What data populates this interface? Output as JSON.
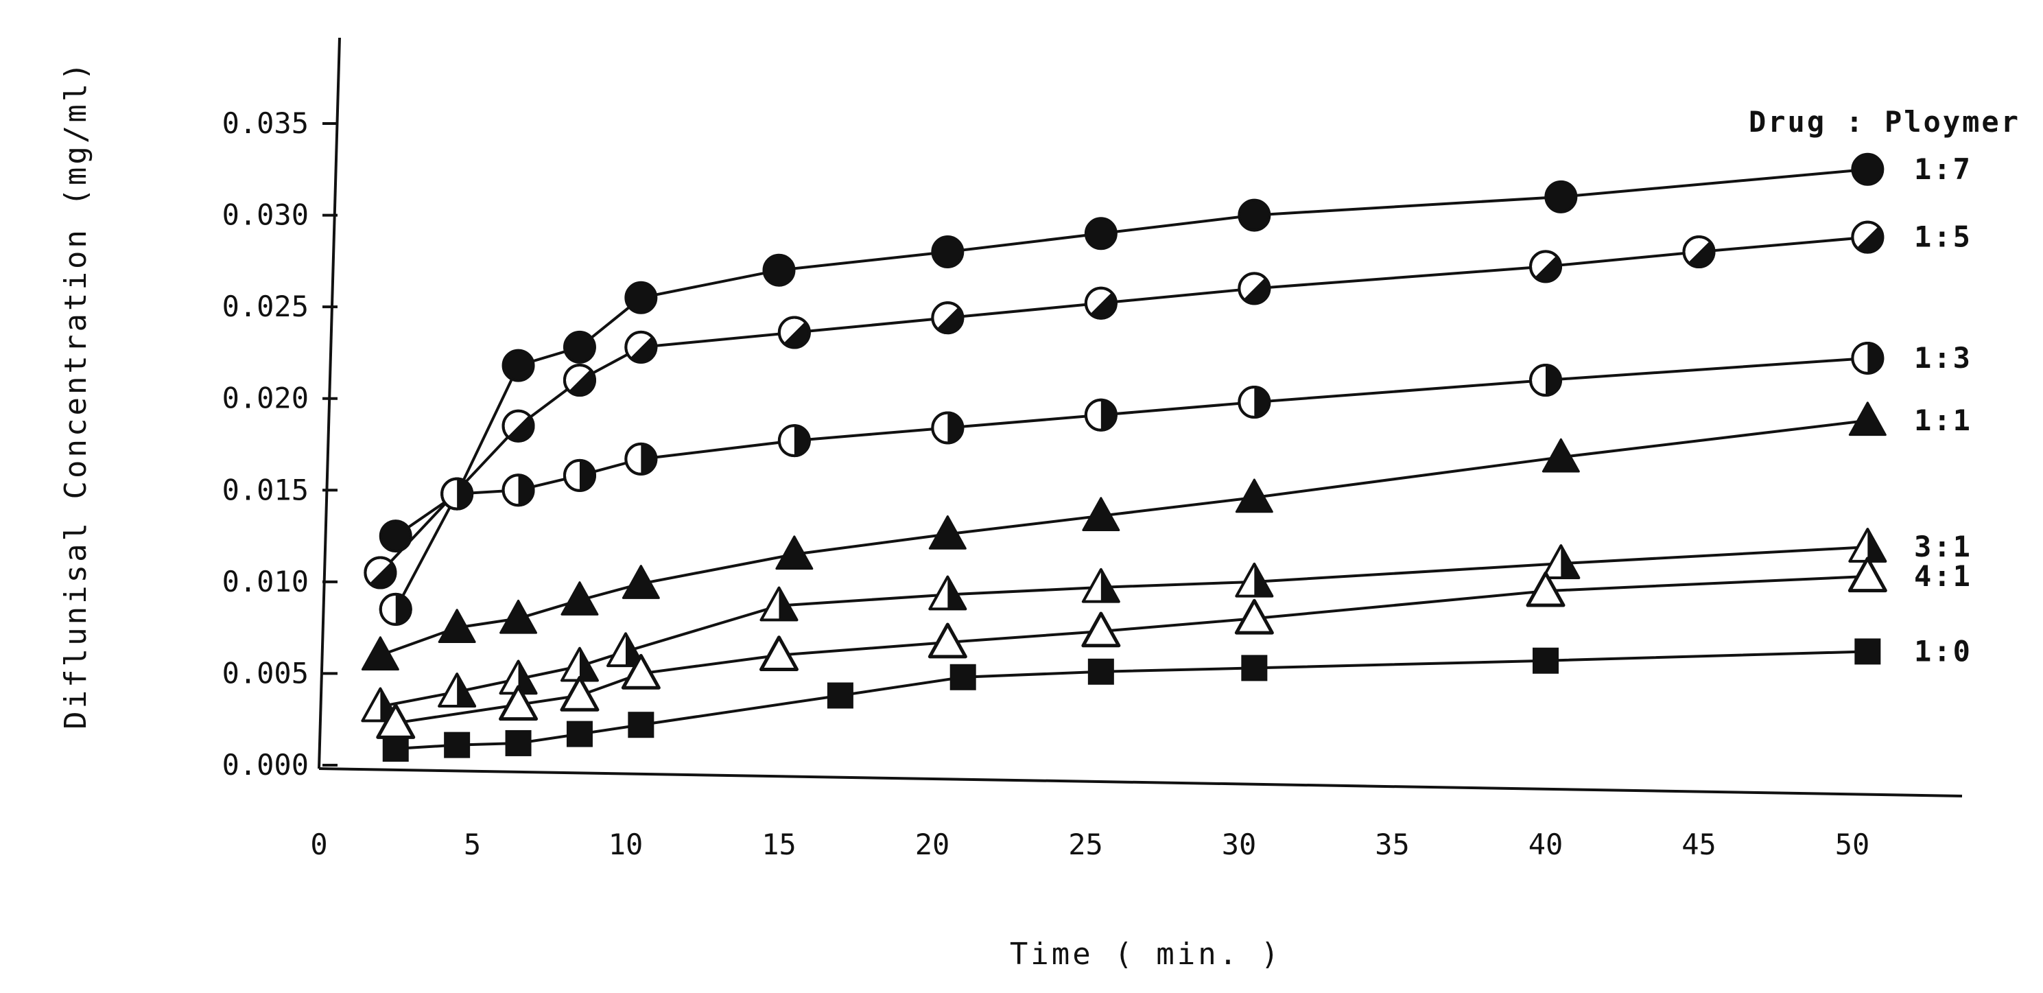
{
  "chart_data": {
    "type": "line",
    "title": "",
    "xlabel": "Time ( min. )",
    "ylabel": "Diflunisal Concentration (mg/ml)",
    "xlim": [
      0,
      55
    ],
    "ylim": [
      0,
      0.038
    ],
    "x_ticks": [
      "0",
      "5",
      "10",
      "15",
      "20",
      "25",
      "30",
      "35",
      "40",
      "45",
      "50"
    ],
    "y_ticks": [
      "0.000",
      "0.005",
      "0.010",
      "0.015",
      "0.020",
      "0.025",
      "0.030",
      "0.035"
    ],
    "grid": false,
    "legend_title": "Drug : Ploymer",
    "legend_placement": "right, labels at line ends",
    "series": [
      {
        "name": "1:7",
        "marker": "filled-circle",
        "x": [
          2.5,
          4.5,
          6.5,
          8.5,
          10.5,
          15,
          20.5,
          25.5,
          30.5,
          40.5,
          50.5
        ],
        "y": [
          0.0125,
          0.0148,
          0.0218,
          0.0228,
          0.0255,
          0.027,
          0.028,
          0.029,
          0.03,
          0.031,
          0.0325
        ]
      },
      {
        "name": "1:5",
        "marker": "diagonal-half-circle",
        "x": [
          2,
          6.5,
          8.5,
          10.5,
          15.5,
          20.5,
          25.5,
          30.5,
          40,
          45,
          50.5
        ],
        "y": [
          0.0105,
          0.0185,
          0.021,
          0.0228,
          0.0236,
          0.0244,
          0.0252,
          0.026,
          0.0272,
          0.028,
          0.0288
        ]
      },
      {
        "name": "1:3",
        "marker": "right-half-circle",
        "x": [
          2.5,
          4.5,
          6.5,
          8.5,
          10.5,
          15.5,
          20.5,
          25.5,
          30.5,
          40,
          50.5
        ],
        "y": [
          0.0085,
          0.0148,
          0.015,
          0.0158,
          0.0167,
          0.0177,
          0.0184,
          0.0191,
          0.0198,
          0.021,
          0.0222
        ]
      },
      {
        "name": "1:1",
        "marker": "filled-triangle",
        "x": [
          2,
          4.5,
          6.5,
          8.5,
          10.5,
          15.5,
          20.5,
          25.5,
          30.5,
          40.5,
          50.5
        ],
        "y": [
          0.006,
          0.0075,
          0.008,
          0.009,
          0.0099,
          0.0115,
          0.0126,
          0.0136,
          0.0146,
          0.0168,
          0.0188
        ]
      },
      {
        "name": "3:1",
        "marker": "half-filled-triangle",
        "x": [
          2,
          4.5,
          6.5,
          8.5,
          10,
          15,
          20.5,
          25.5,
          30.5,
          40.5,
          50.5
        ],
        "y": [
          0.0032,
          0.004,
          0.0047,
          0.0054,
          0.0062,
          0.0087,
          0.0093,
          0.0097,
          0.01,
          0.011,
          0.0119
        ]
      },
      {
        "name": "4:1",
        "marker": "open-triangle",
        "x": [
          2.5,
          6.5,
          8.5,
          10.5,
          15,
          20.5,
          25.5,
          30.5,
          40,
          50.5
        ],
        "y": [
          0.0023,
          0.0033,
          0.0038,
          0.005,
          0.006,
          0.0067,
          0.0073,
          0.008,
          0.0095,
          0.0103
        ]
      },
      {
        "name": "1:0",
        "marker": "filled-square",
        "x": [
          2.5,
          4.5,
          6.5,
          8.5,
          10.5,
          17,
          21,
          25.5,
          30.5,
          40,
          50.5
        ],
        "y": [
          0.0009,
          0.0011,
          0.0012,
          0.0017,
          0.0022,
          0.0038,
          0.0048,
          0.0051,
          0.0053,
          0.0057,
          0.0062
        ]
      }
    ]
  }
}
